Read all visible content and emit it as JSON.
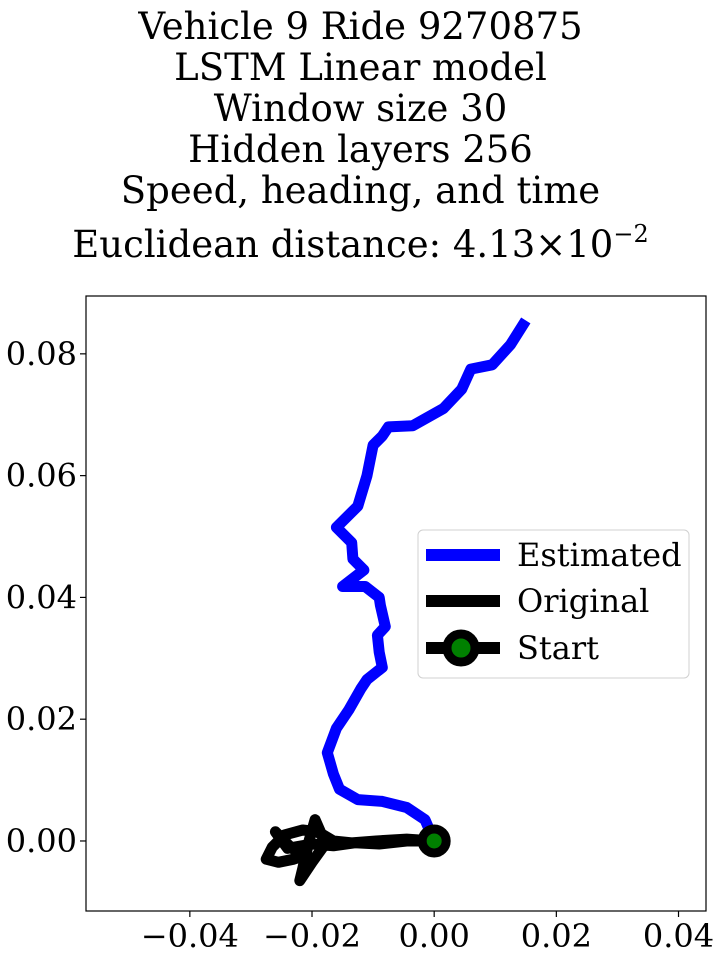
{
  "title_lines": [
    "Vehicle 9 Ride 9270875",
    "LSTM Linear model",
    "Window size 30",
    "Hidden layers 256",
    "Speed, heading, and time"
  ],
  "distance_label": "Euclidean distance: 4.13×10",
  "distance_exponent": "−2",
  "chart_data": {
    "type": "line",
    "title": "Vehicle 9 Ride 9270875 LSTM Linear model Window size 30 Hidden layers 256 Speed, heading, and time Euclidean distance: 4.13×10^-2",
    "xlim": [
      -0.057,
      0.0445
    ],
    "ylim": [
      -0.0115,
      0.0895
    ],
    "xticks": [
      -0.04,
      -0.02,
      0.0,
      0.02,
      0.04
    ],
    "xtick_labels": [
      "−0.04",
      "−0.02",
      "0.00",
      "0.02",
      "0.04"
    ],
    "yticks": [
      0.0,
      0.02,
      0.04,
      0.06,
      0.08
    ],
    "ytick_labels": [
      "0.00",
      "0.02",
      "0.04",
      "0.06",
      "0.08"
    ],
    "grid": false,
    "legend_position": "center-right",
    "series": [
      {
        "name": "Estimated",
        "color": "#0000ff",
        "points": [
          [
            0.0,
            0.0
          ],
          [
            -0.0015,
            0.0035
          ],
          [
            -0.0045,
            0.0055
          ],
          [
            -0.0085,
            0.0065
          ],
          [
            -0.0125,
            0.0068
          ],
          [
            -0.0155,
            0.0085
          ],
          [
            -0.0165,
            0.011
          ],
          [
            -0.0175,
            0.0145
          ],
          [
            -0.016,
            0.0185
          ],
          [
            -0.014,
            0.0215
          ],
          [
            -0.012,
            0.025
          ],
          [
            -0.011,
            0.0265
          ],
          [
            -0.0085,
            0.0285
          ],
          [
            -0.009,
            0.031
          ],
          [
            -0.0093,
            0.0338
          ],
          [
            -0.008,
            0.0352
          ],
          [
            -0.0088,
            0.0387
          ],
          [
            -0.009,
            0.04
          ],
          [
            -0.0113,
            0.0418
          ],
          [
            -0.015,
            0.0418
          ],
          [
            -0.0115,
            0.0445
          ],
          [
            -0.0133,
            0.0463
          ],
          [
            -0.0135,
            0.049
          ],
          [
            -0.016,
            0.0515
          ],
          [
            -0.0125,
            0.055
          ],
          [
            -0.011,
            0.06
          ],
          [
            -0.01,
            0.065
          ],
          [
            -0.0085,
            0.0665
          ],
          [
            -0.0075,
            0.068
          ],
          [
            -0.0035,
            0.0682
          ],
          [
            0.0015,
            0.071
          ],
          [
            0.0045,
            0.0742
          ],
          [
            0.006,
            0.0775
          ],
          [
            0.0095,
            0.0782
          ],
          [
            0.0125,
            0.0815
          ],
          [
            0.015,
            0.0855
          ]
        ]
      },
      {
        "name": "Original",
        "color": "#000000",
        "points": [
          [
            0.0,
            0.0
          ],
          [
            -0.0045,
            0.0003
          ],
          [
            -0.0095,
            0.0
          ],
          [
            -0.0135,
            -0.0003
          ],
          [
            -0.0165,
            0.0
          ],
          [
            -0.0185,
            0.0012
          ],
          [
            -0.0195,
            0.0035
          ],
          [
            -0.0205,
            0.0
          ],
          [
            -0.0215,
            -0.0045
          ],
          [
            -0.022,
            -0.0065
          ],
          [
            -0.02,
            -0.0035
          ],
          [
            -0.0175,
            0.0
          ],
          [
            -0.019,
            0.0015
          ],
          [
            -0.0215,
            0.0018
          ],
          [
            -0.0245,
            0.001
          ],
          [
            -0.0265,
            -0.001
          ],
          [
            -0.0275,
            -0.003
          ],
          [
            -0.0255,
            -0.0035
          ],
          [
            -0.023,
            -0.003
          ],
          [
            -0.0215,
            -0.0025
          ],
          [
            -0.0235,
            -0.001
          ],
          [
            -0.026,
            0.0015
          ],
          [
            -0.024,
            -0.0012
          ],
          [
            -0.02,
            -0.0005
          ],
          [
            -0.0165,
            -0.0008
          ],
          [
            -0.013,
            -0.0003
          ],
          [
            -0.009,
            -0.0005
          ],
          [
            -0.0045,
            0.0
          ],
          [
            0.0,
            0.0
          ]
        ]
      }
    ],
    "start_marker": {
      "name": "Start",
      "point": [
        0.0,
        0.0
      ],
      "line_color": "#000000",
      "marker_edge": "#000000",
      "marker_face": "#008000"
    }
  }
}
